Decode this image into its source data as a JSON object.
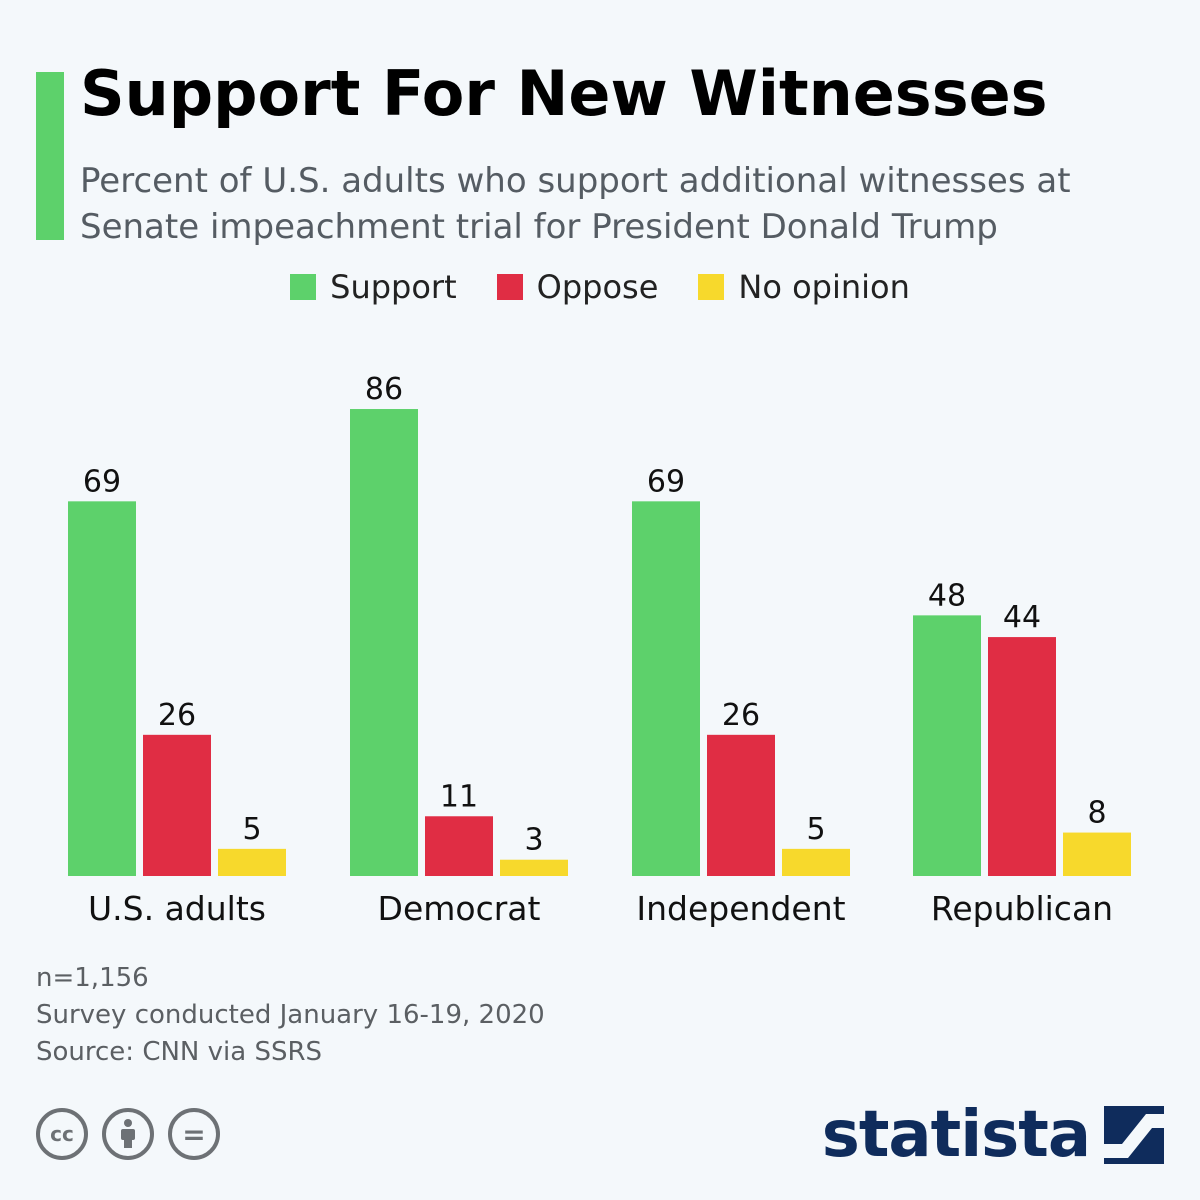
{
  "header": {
    "title": "Support For New Witnesses",
    "subtitle": "Percent of U.S. adults who support additional witnesses at Senate impeachment trial for President Donald Trump",
    "accent_color": "#5dd16b"
  },
  "legend": [
    {
      "label": "Support",
      "color": "#5dd16b"
    },
    {
      "label": "Oppose",
      "color": "#e02d44"
    },
    {
      "label": "No opinion",
      "color": "#f7d92c"
    }
  ],
  "chart_data": {
    "type": "bar",
    "categories": [
      "U.S. adults",
      "Democrat",
      "Independent",
      "Republican"
    ],
    "series": [
      {
        "name": "Support",
        "color": "#5dd16b",
        "values": [
          69,
          86,
          69,
          48
        ]
      },
      {
        "name": "Oppose",
        "color": "#e02d44",
        "values": [
          26,
          11,
          26,
          44
        ]
      },
      {
        "name": "No opinion",
        "color": "#f7d92c",
        "values": [
          5,
          3,
          5,
          8
        ]
      }
    ],
    "data_labels": true,
    "grid": false,
    "legend_position": "top"
  },
  "notes": {
    "sample": "n=1,156",
    "survey": "Survey conducted January 16-19, 2020",
    "source": "Source: CNN via SSRS"
  },
  "footer": {
    "license_icons": [
      "creative-commons-icon",
      "attribution-icon",
      "no-derivatives-icon"
    ],
    "cc_text": "cc",
    "nd_text": "=",
    "brand": "statista",
    "brand_color": "#0f2c5c"
  }
}
